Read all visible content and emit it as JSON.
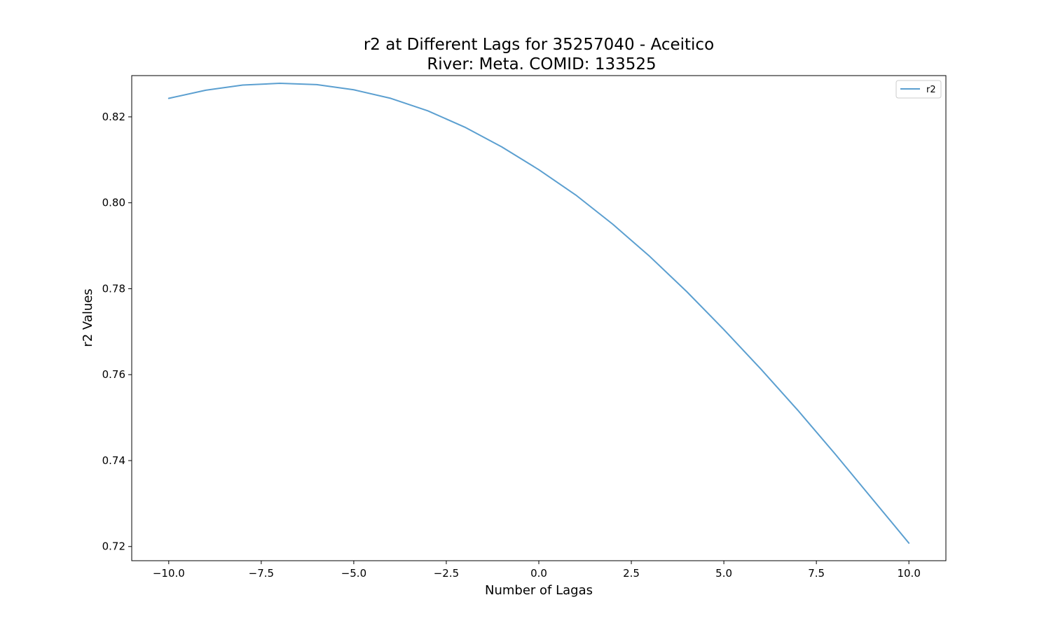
{
  "chart_data": {
    "type": "line",
    "title_line1": "r2 at Different Lags for 35257040 - Aceitico",
    "title_line2": "River: Meta. COMID: 133525",
    "xlabel": "Number of Lagas",
    "ylabel": "r2 Values",
    "xlim": [
      -11.0,
      11.0
    ],
    "ylim": [
      0.7167,
      0.8296
    ],
    "xticks": [
      {
        "value": -10.0,
        "label": "−10.0"
      },
      {
        "value": -7.5,
        "label": "−7.5"
      },
      {
        "value": -5.0,
        "label": "−5.0"
      },
      {
        "value": -2.5,
        "label": "−2.5"
      },
      {
        "value": 0.0,
        "label": "0.0"
      },
      {
        "value": 2.5,
        "label": "2.5"
      },
      {
        "value": 5.0,
        "label": "5.0"
      },
      {
        "value": 7.5,
        "label": "7.5"
      },
      {
        "value": 10.0,
        "label": "10.0"
      }
    ],
    "yticks": [
      {
        "value": 0.72,
        "label": "0.72"
      },
      {
        "value": 0.74,
        "label": "0.74"
      },
      {
        "value": 0.76,
        "label": "0.76"
      },
      {
        "value": 0.78,
        "label": "0.78"
      },
      {
        "value": 0.8,
        "label": "0.80"
      },
      {
        "value": 0.82,
        "label": "0.82"
      }
    ],
    "grid": false,
    "legend_position": "top-right",
    "series": [
      {
        "name": "r2",
        "color": "#5b9fd0",
        "x": [
          -10,
          -9,
          -8,
          -7,
          -6,
          -5,
          -4,
          -3,
          -2,
          -1,
          0,
          1,
          2,
          3,
          4,
          5,
          6,
          7,
          8,
          9,
          10
        ],
        "y": [
          0.8243,
          0.8262,
          0.8274,
          0.8278,
          0.8275,
          0.8263,
          0.8243,
          0.8214,
          0.8176,
          0.813,
          0.8077,
          0.8018,
          0.795,
          0.7875,
          0.7793,
          0.7705,
          0.7613,
          0.7517,
          0.7416,
          0.7312,
          0.7208
        ]
      }
    ]
  }
}
